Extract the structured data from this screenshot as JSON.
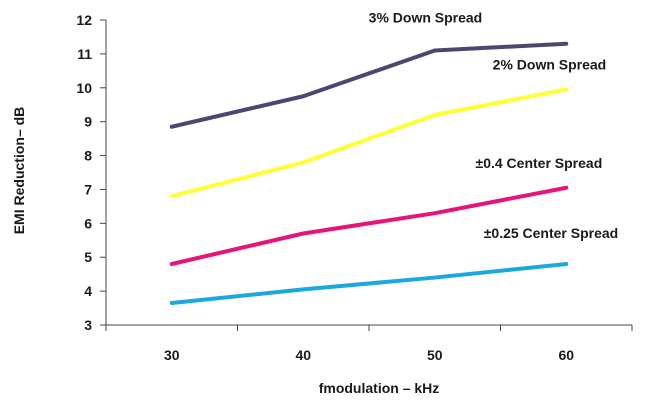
{
  "chart_data": {
    "type": "line",
    "title": "",
    "xlabel": "fmodulation – kHz",
    "ylabel": "EMI Reduction– dB",
    "x": [
      30,
      40,
      50,
      60
    ],
    "xlim": [
      25,
      65
    ],
    "ylim": [
      3,
      12
    ],
    "yticks": [
      3,
      4,
      5,
      6,
      7,
      8,
      9,
      10,
      11,
      12
    ],
    "grid": false,
    "legend": "none",
    "series": [
      {
        "name": "3% Down Spread",
        "color": "#4a4870",
        "values": [
          8.85,
          9.75,
          11.1,
          11.3
        ]
      },
      {
        "name": "2% Down Spread",
        "color": "#ffff33",
        "values": [
          6.8,
          7.8,
          9.2,
          9.95
        ]
      },
      {
        "name": "±0.4 Center Spread",
        "color": "#e6137a",
        "values": [
          4.8,
          5.7,
          6.3,
          7.05
        ]
      },
      {
        "name": "±0.25 Center Spread",
        "color": "#1ba8e0",
        "values": [
          3.65,
          4.05,
          4.4,
          4.8
        ]
      }
    ]
  }
}
